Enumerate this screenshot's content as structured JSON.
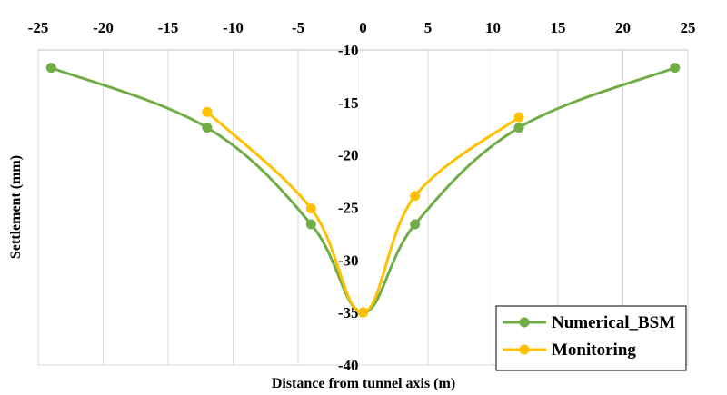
{
  "chart_data": {
    "type": "line",
    "xlabel": "Distance from tunnel axis (m)",
    "ylabel": "Settlement (mm)",
    "xlim": [
      -25,
      25
    ],
    "ylim": [
      -40,
      -10
    ],
    "x_ticks": [
      -25,
      -20,
      -15,
      -10,
      -5,
      0,
      5,
      10,
      15,
      20,
      25
    ],
    "y_ticks": [
      -10,
      -15,
      -20,
      -25,
      -30,
      -35,
      -40
    ],
    "x_axis_position": "top",
    "y_axis_position": "center",
    "grid": "vertical",
    "legend_position": "bottom-right",
    "series": [
      {
        "name": "Numerical_BSM",
        "color": "#70ad47",
        "x": [
          -24,
          -12,
          -4,
          0,
          4,
          12,
          24
        ],
        "y": [
          -11.7,
          -17.4,
          -26.6,
          -35,
          -26.6,
          -17.4,
          -11.7
        ]
      },
      {
        "name": "Monitoring",
        "color": "#ffc000",
        "x": [
          -12,
          -4,
          0,
          4,
          12
        ],
        "y": [
          -15.9,
          -25.1,
          -35,
          -23.9,
          -16.4
        ]
      }
    ]
  }
}
